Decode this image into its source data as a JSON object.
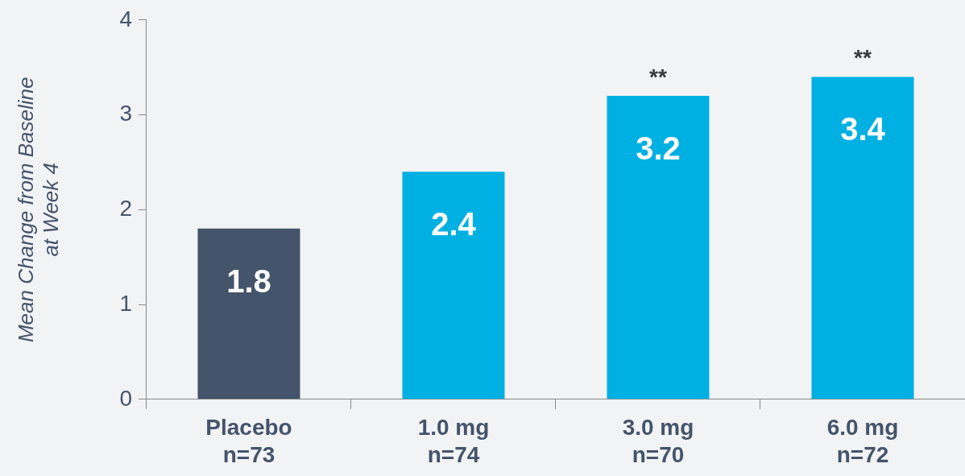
{
  "chart_data": {
    "type": "bar",
    "ylabel": "Mean Change from Baseline at Week 4",
    "categories": [
      "Placebo\nn=73",
      "1.0 mg\nn=74",
      "3.0 mg\nn=70",
      "6.0 mg\nn=72"
    ],
    "values": [
      1.8,
      2.4,
      3.2,
      3.4
    ],
    "colors": [
      "#44546a",
      "#00b0e2",
      "#00b0e2",
      "#00b0e2"
    ],
    "ylim": [
      0,
      4
    ],
    "yticks": [
      0,
      1,
      2,
      3,
      4
    ],
    "grid": false,
    "legend": false,
    "data_labels": true,
    "annotations": [
      {
        "text": "**",
        "x": "3.0 mg\nn=70",
        "y": 3.2
      },
      {
        "text": "**",
        "x": "6.0 mg\nn=72",
        "y": 3.4
      }
    ]
  }
}
